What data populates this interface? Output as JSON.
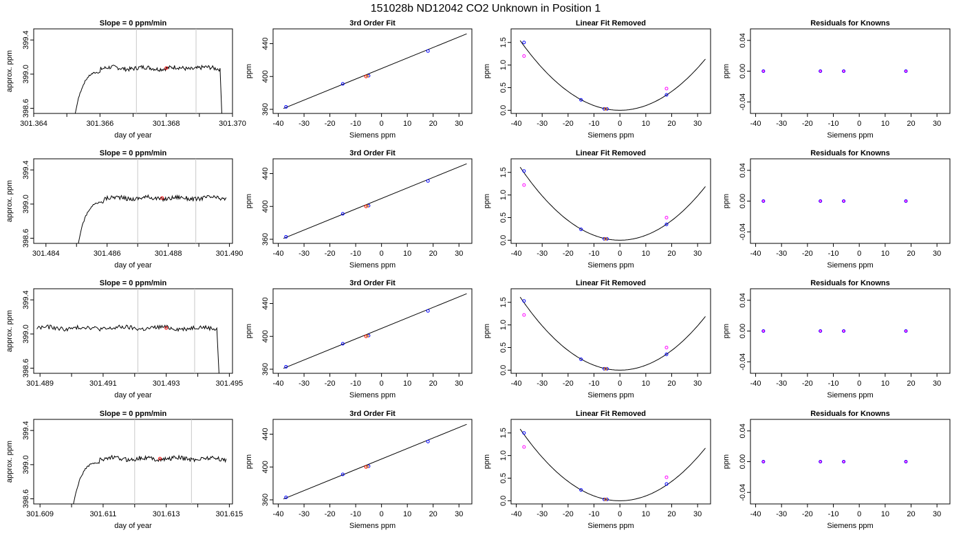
{
  "page": {
    "title": "151028b     ND12042   CO2 Unknown in Position  1"
  },
  "colors": {
    "axis": "#000000",
    "trace": "#000000",
    "marker_line": "#c8c8c8",
    "marker_point": "#ff0000",
    "known_points": "#0000ff",
    "fit_points_extra": "#ff00ff",
    "unknown_point": "#ff0000",
    "orange_point": "#ff8c00"
  },
  "chart_data": [
    {
      "type": "line",
      "row": 0,
      "col": 0,
      "title": "Slope =  0  ppm/min",
      "xlabel": "day of year",
      "ylabel": "approx. ppm",
      "xlim": [
        301.364,
        301.37
      ],
      "ylim": [
        398.54,
        399.53
      ],
      "x_ticks": [
        "301.364",
        "301.366",
        "301.368",
        "301.370"
      ],
      "y_ticks": [
        "398.6",
        "399.0",
        "399.4"
      ],
      "trace": {
        "x_start": 301.3652,
        "x_end": 301.3697,
        "plateau": 399.07
      },
      "markers": {
        "vlines": [
          301.3671,
          301.3689
        ],
        "point": [
          301.368,
          399.07
        ]
      }
    },
    {
      "type": "scatter",
      "row": 0,
      "col": 1,
      "title": "3rd Order Fit",
      "xlabel": "Siemens ppm",
      "ylabel": "ppm",
      "xlim": [
        -42,
        35
      ],
      "ylim": [
        355,
        458
      ],
      "x_ticks": [
        "-40",
        "-30",
        "-20",
        "-10",
        "0",
        "10",
        "20",
        "30"
      ],
      "y_ticks": [
        "360",
        "400",
        "440"
      ],
      "fit_line": [
        [
          -38,
          361
        ],
        [
          33,
          452
        ]
      ],
      "points": [
        [
          -37,
          363
        ],
        [
          -15,
          391
        ],
        [
          -6,
          400
        ],
        [
          -5,
          401
        ],
        [
          18,
          431
        ]
      ]
    },
    {
      "type": "scatter",
      "row": 0,
      "col": 2,
      "title": "Linear Fit Removed",
      "xlabel": "Siemens ppm",
      "ylabel": "ppm",
      "xlim": [
        -42,
        35
      ],
      "ylim": [
        -0.07,
        1.8
      ],
      "x_ticks": [
        "-40",
        "-30",
        "-20",
        "-10",
        "0",
        "10",
        "20",
        "30"
      ],
      "y_ticks": [
        "0.0",
        "0.5",
        "1.0",
        "1.5"
      ],
      "curve_coef": 0.00104,
      "curve_range": [
        -38.5,
        33
      ],
      "points_known": [
        [
          -37,
          1.5
        ],
        [
          -15,
          0.23
        ],
        [
          -6,
          0.03
        ],
        [
          -5,
          0.03
        ],
        [
          18,
          0.34
        ]
      ],
      "points_extra": [
        [
          -37,
          1.2
        ],
        [
          18,
          0.48
        ]
      ],
      "point_unknown": [
        -5.5,
        0.03
      ]
    },
    {
      "type": "scatter",
      "row": 0,
      "col": 3,
      "title": "Residuals for Knowns",
      "xlabel": "Siemens ppm",
      "ylabel": "ppm",
      "xlim": [
        -42,
        35
      ],
      "ylim": [
        -0.055,
        0.055
      ],
      "x_ticks": [
        "-40",
        "-30",
        "-20",
        "-10",
        "0",
        "10",
        "20",
        "30"
      ],
      "y_ticks": [
        "-0.04",
        "0.00",
        "0.04"
      ],
      "points": [
        [
          -37,
          0
        ],
        [
          -15,
          0
        ],
        [
          -6,
          0
        ],
        [
          18,
          0
        ]
      ]
    },
    {
      "type": "line",
      "row": 1,
      "col": 0,
      "title": "Slope =  0  ppm/min",
      "xlabel": "day of year",
      "ylabel": "approx. ppm",
      "xlim": [
        301.4836,
        301.4901
      ],
      "ylim": [
        398.54,
        399.53
      ],
      "x_ticks": [
        "301.484",
        "301.486",
        "301.488",
        "301.490"
      ],
      "y_ticks": [
        "398.6",
        "399.0",
        "399.4"
      ],
      "trace": {
        "x_start": 301.485,
        "x_end": 301.4899,
        "plateau": 399.07
      },
      "markers": {
        "vlines": [
          301.487,
          301.4889
        ],
        "point": [
          301.4878,
          399.07
        ]
      }
    },
    {
      "type": "scatter",
      "row": 1,
      "col": 1,
      "title": "3rd Order Fit",
      "xlabel": "Siemens ppm",
      "ylabel": "ppm",
      "xlim": [
        -42,
        35
      ],
      "ylim": [
        355,
        458
      ],
      "x_ticks": [
        "-40",
        "-30",
        "-20",
        "-10",
        "0",
        "10",
        "20",
        "30"
      ],
      "y_ticks": [
        "360",
        "400",
        "440"
      ],
      "fit_line": [
        [
          -38,
          361
        ],
        [
          33,
          452
        ]
      ],
      "points": [
        [
          -37,
          363
        ],
        [
          -15,
          391
        ],
        [
          -6,
          400
        ],
        [
          -5,
          401
        ],
        [
          18,
          431
        ]
      ]
    },
    {
      "type": "scatter",
      "row": 1,
      "col": 2,
      "title": "Linear Fit Removed",
      "xlabel": "Siemens ppm",
      "ylabel": "ppm",
      "xlim": [
        -42,
        35
      ],
      "ylim": [
        -0.07,
        1.8
      ],
      "x_ticks": [
        "-40",
        "-30",
        "-20",
        "-10",
        "0",
        "10",
        "20",
        "30"
      ],
      "y_ticks": [
        "0.0",
        "0.5",
        "1.0",
        "1.5"
      ],
      "curve_coef": 0.00109,
      "curve_range": [
        -38.5,
        33
      ],
      "points_known": [
        [
          -37,
          1.53
        ],
        [
          -15,
          0.24
        ],
        [
          -6,
          0.03
        ],
        [
          -5,
          0.03
        ],
        [
          18,
          0.35
        ]
      ],
      "points_extra": [
        [
          -37,
          1.22
        ],
        [
          18,
          0.5
        ]
      ],
      "point_unknown": [
        -5.5,
        0.03
      ]
    },
    {
      "type": "scatter",
      "row": 1,
      "col": 3,
      "title": "Residuals for Knowns",
      "xlabel": "Siemens ppm",
      "ylabel": "ppm",
      "xlim": [
        -42,
        35
      ],
      "ylim": [
        -0.055,
        0.055
      ],
      "x_ticks": [
        "-40",
        "-30",
        "-20",
        "-10",
        "0",
        "10",
        "20",
        "30"
      ],
      "y_ticks": [
        "-0.04",
        "0.00",
        "0.04"
      ],
      "points": [
        [
          -37,
          0
        ],
        [
          -15,
          0
        ],
        [
          -6,
          0
        ],
        [
          18,
          0
        ]
      ]
    },
    {
      "type": "line",
      "row": 2,
      "col": 0,
      "title": "Slope =  0  ppm/min",
      "xlabel": "day of year",
      "ylabel": "approx. ppm",
      "xlim": [
        301.4888,
        301.4951
      ],
      "ylim": [
        398.54,
        399.53
      ],
      "x_ticks": [
        "301.489",
        "301.491",
        "301.493",
        "301.495"
      ],
      "y_ticks": [
        "398.6",
        "399.0",
        "399.4"
      ],
      "trace": {
        "x_start": 301.4889,
        "x_end": 301.4947,
        "plateau": 399.07,
        "no_rise": true
      },
      "markers": {
        "vlines": [
          301.4921,
          301.4939
        ],
        "point": [
          301.493,
          399.07
        ]
      }
    },
    {
      "type": "scatter",
      "row": 2,
      "col": 1,
      "title": "3rd Order Fit",
      "xlabel": "Siemens ppm",
      "ylabel": "ppm",
      "xlim": [
        -42,
        35
      ],
      "ylim": [
        355,
        458
      ],
      "x_ticks": [
        "-40",
        "-30",
        "-20",
        "-10",
        "0",
        "10",
        "20",
        "30"
      ],
      "y_ticks": [
        "360",
        "400",
        "440"
      ],
      "fit_line": [
        [
          -38,
          361
        ],
        [
          33,
          452
        ]
      ],
      "points": [
        [
          -37,
          363
        ],
        [
          -15,
          391
        ],
        [
          -6,
          400
        ],
        [
          -5,
          401
        ],
        [
          18,
          431
        ]
      ]
    },
    {
      "type": "scatter",
      "row": 2,
      "col": 2,
      "title": "Linear Fit Removed",
      "xlabel": "Siemens ppm",
      "ylabel": "ppm",
      "xlim": [
        -42,
        35
      ],
      "ylim": [
        -0.07,
        1.8
      ],
      "x_ticks": [
        "-40",
        "-30",
        "-20",
        "-10",
        "0",
        "10",
        "20",
        "30"
      ],
      "y_ticks": [
        "0.0",
        "0.5",
        "1.0",
        "1.5"
      ],
      "curve_coef": 0.00109,
      "curve_range": [
        -38.5,
        33
      ],
      "points_known": [
        [
          -37,
          1.53
        ],
        [
          -15,
          0.24
        ],
        [
          -6,
          0.03
        ],
        [
          -5,
          0.03
        ],
        [
          18,
          0.35
        ]
      ],
      "points_extra": [
        [
          -37,
          1.22
        ],
        [
          18,
          0.5
        ]
      ],
      "point_unknown": [
        -5.5,
        0.03
      ]
    },
    {
      "type": "scatter",
      "row": 2,
      "col": 3,
      "title": "Residuals for Knowns",
      "xlabel": "Siemens ppm",
      "ylabel": "ppm",
      "xlim": [
        -42,
        35
      ],
      "ylim": [
        -0.055,
        0.055
      ],
      "x_ticks": [
        "-40",
        "-30",
        "-20",
        "-10",
        "0",
        "10",
        "20",
        "30"
      ],
      "y_ticks": [
        "-0.04",
        "0.00",
        "0.04"
      ],
      "points": [
        [
          -37,
          0
        ],
        [
          -15,
          0
        ],
        [
          -6,
          0
        ],
        [
          18,
          0
        ]
      ]
    },
    {
      "type": "line",
      "row": 3,
      "col": 0,
      "title": "Slope =  0  ppm/min",
      "xlabel": "day of year",
      "ylabel": "approx. ppm",
      "xlim": [
        301.6088,
        301.6151
      ],
      "ylim": [
        398.54,
        399.53
      ],
      "x_ticks": [
        "301.609",
        "301.611",
        "301.613",
        "301.615"
      ],
      "y_ticks": [
        "398.6",
        "399.0",
        "399.4"
      ],
      "trace": {
        "x_start": 301.61,
        "x_end": 301.6149,
        "plateau": 399.07
      },
      "markers": {
        "vlines": [
          301.612,
          301.6138
        ],
        "point": [
          301.6128,
          399.07
        ]
      }
    },
    {
      "type": "scatter",
      "row": 3,
      "col": 1,
      "title": "3rd Order Fit",
      "xlabel": "Siemens ppm",
      "ylabel": "ppm",
      "xlim": [
        -42,
        35
      ],
      "ylim": [
        355,
        458
      ],
      "x_ticks": [
        "-40",
        "-30",
        "-20",
        "-10",
        "0",
        "10",
        "20",
        "30"
      ],
      "y_ticks": [
        "360",
        "400",
        "440"
      ],
      "fit_line": [
        [
          -38,
          361
        ],
        [
          33,
          452
        ]
      ],
      "points": [
        [
          -37,
          363
        ],
        [
          -15,
          391
        ],
        [
          -6,
          400
        ],
        [
          -5,
          401
        ],
        [
          18,
          431
        ]
      ]
    },
    {
      "type": "scatter",
      "row": 3,
      "col": 2,
      "title": "Linear Fit Removed",
      "xlabel": "Siemens ppm",
      "ylabel": "ppm",
      "xlim": [
        -42,
        35
      ],
      "ylim": [
        -0.07,
        1.8
      ],
      "x_ticks": [
        "-40",
        "-30",
        "-20",
        "-10",
        "0",
        "10",
        "20",
        "30"
      ],
      "y_ticks": [
        "0.0",
        "0.5",
        "1.0",
        "1.5"
      ],
      "curve_coef": 0.00107,
      "curve_range": [
        -38.5,
        33
      ],
      "points_known": [
        [
          -37,
          1.5
        ],
        [
          -15,
          0.24
        ],
        [
          -6,
          0.03
        ],
        [
          -5,
          0.03
        ],
        [
          18,
          0.37
        ]
      ],
      "points_extra": [
        [
          -37,
          1.19
        ],
        [
          18,
          0.52
        ]
      ],
      "point_unknown": [
        -5.5,
        0.03
      ]
    },
    {
      "type": "scatter",
      "row": 3,
      "col": 3,
      "title": "Residuals for Knowns",
      "xlabel": "Siemens ppm",
      "ylabel": "ppm",
      "xlim": [
        -42,
        35
      ],
      "ylim": [
        -0.055,
        0.055
      ],
      "x_ticks": [
        "-40",
        "-30",
        "-20",
        "-10",
        "0",
        "10",
        "20",
        "30"
      ],
      "y_ticks": [
        "-0.04",
        "0.00",
        "0.04"
      ],
      "points": [
        [
          -37,
          0
        ],
        [
          -15,
          0
        ],
        [
          -6,
          0
        ],
        [
          18,
          0
        ]
      ]
    }
  ]
}
